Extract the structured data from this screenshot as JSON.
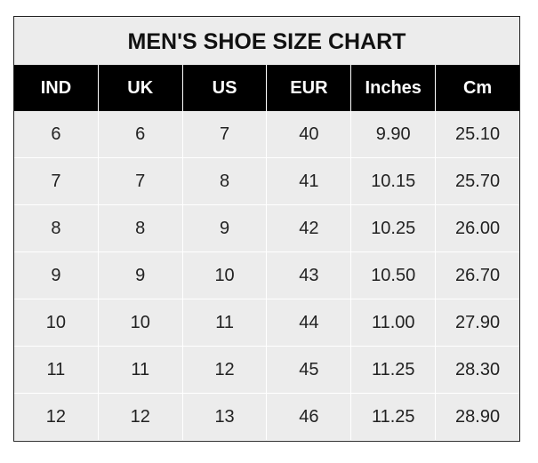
{
  "title": "MEN'S SHOE SIZE CHART",
  "headers": [
    "IND",
    "UK",
    "US",
    "EUR",
    "Inches",
    "Cm"
  ],
  "rows": [
    [
      "6",
      "6",
      "7",
      "40",
      "9.90",
      "25.10"
    ],
    [
      "7",
      "7",
      "8",
      "41",
      "10.15",
      "25.70"
    ],
    [
      "8",
      "8",
      "9",
      "42",
      "10.25",
      "26.00"
    ],
    [
      "9",
      "9",
      "10",
      "43",
      "10.50",
      "26.70"
    ],
    [
      "10",
      "10",
      "11",
      "44",
      "11.00",
      "27.90"
    ],
    [
      "11",
      "11",
      "12",
      "45",
      "11.25",
      "28.30"
    ],
    [
      "12",
      "12",
      "13",
      "46",
      "11.25",
      "28.90"
    ]
  ],
  "colors": {
    "header_bg": "#000000",
    "cell_bg": "#ececec"
  }
}
